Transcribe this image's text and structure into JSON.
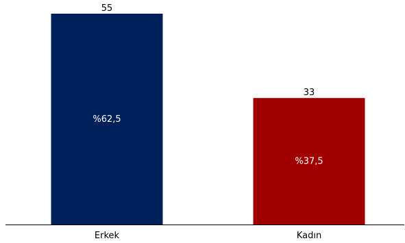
{
  "chart_data": {
    "type": "bar",
    "categories": [
      "Erkek",
      "Kadın"
    ],
    "values": [
      55,
      33
    ],
    "percent_labels": [
      "%62,5",
      "%37,5"
    ],
    "colors": [
      "#00205B",
      "#A00000"
    ],
    "title": "",
    "xlabel": "",
    "ylabel": "",
    "ylim": [
      0,
      55
    ],
    "grid": false,
    "legend": "none"
  }
}
